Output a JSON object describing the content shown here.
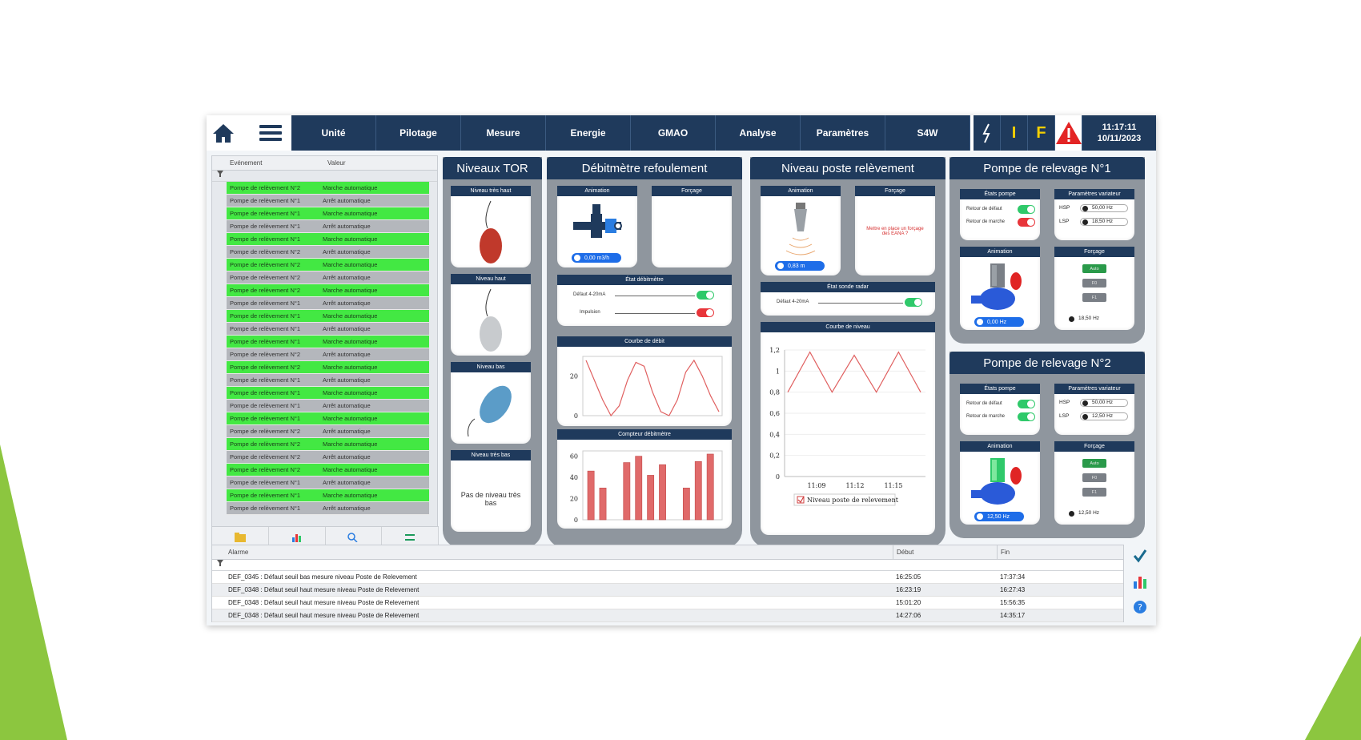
{
  "nav": {
    "tabs": [
      "Unité",
      "Pilotage",
      "Mesure",
      "Energie",
      "GMAO",
      "Analyse",
      "Paramètres",
      "S4W"
    ],
    "indicators": [
      "I",
      "F"
    ],
    "clock_time": "11:17:11",
    "clock_date": "10/11/2023"
  },
  "events": {
    "col_event": "Evénement",
    "col_value": "Valeur",
    "rows": [
      {
        "event": "Pompe de relèvement N°2",
        "value": "Marche automatique",
        "state": "on"
      },
      {
        "event": "Pompe de relèvement N°1",
        "value": "Arrêt automatique",
        "state": "off"
      },
      {
        "event": "Pompe de relèvement N°1",
        "value": "Marche automatique",
        "state": "on"
      },
      {
        "event": "Pompe de relèvement N°1",
        "value": "Arrêt automatique",
        "state": "off"
      },
      {
        "event": "Pompe de relèvement N°1",
        "value": "Marche automatique",
        "state": "on"
      },
      {
        "event": "Pompe de relèvement N°2",
        "value": "Arrêt automatique",
        "state": "off"
      },
      {
        "event": "Pompe de relèvement N°2",
        "value": "Marche automatique",
        "state": "on"
      },
      {
        "event": "Pompe de relèvement N°2",
        "value": "Arrêt automatique",
        "state": "off"
      },
      {
        "event": "Pompe de relèvement N°2",
        "value": "Marche automatique",
        "state": "on"
      },
      {
        "event": "Pompe de relèvement N°1",
        "value": "Arrêt automatique",
        "state": "off"
      },
      {
        "event": "Pompe de relèvement N°1",
        "value": "Marche automatique",
        "state": "on"
      },
      {
        "event": "Pompe de relèvement N°1",
        "value": "Arrêt automatique",
        "state": "off"
      },
      {
        "event": "Pompe de relèvement N°1",
        "value": "Marche automatique",
        "state": "on"
      },
      {
        "event": "Pompe de relèvement N°2",
        "value": "Arrêt automatique",
        "state": "off"
      },
      {
        "event": "Pompe de relèvement N°2",
        "value": "Marche automatique",
        "state": "on"
      },
      {
        "event": "Pompe de relèvement N°1",
        "value": "Arrêt automatique",
        "state": "off"
      },
      {
        "event": "Pompe de relèvement N°1",
        "value": "Marche automatique",
        "state": "on"
      },
      {
        "event": "Pompe de relèvement N°1",
        "value": "Arrêt automatique",
        "state": "off"
      },
      {
        "event": "Pompe de relèvement N°1",
        "value": "Marche automatique",
        "state": "on"
      },
      {
        "event": "Pompe de relèvement N°2",
        "value": "Arrêt automatique",
        "state": "off"
      },
      {
        "event": "Pompe de relèvement N°2",
        "value": "Marche automatique",
        "state": "on"
      },
      {
        "event": "Pompe de relèvement N°2",
        "value": "Arrêt automatique",
        "state": "off"
      },
      {
        "event": "Pompe de relèvement N°2",
        "value": "Marche automatique",
        "state": "on"
      },
      {
        "event": "Pompe de relèvement N°1",
        "value": "Arrêt automatique",
        "state": "off"
      },
      {
        "event": "Pompe de relèvement N°1",
        "value": "Marche automatique",
        "state": "on"
      },
      {
        "event": "Pompe de relèvement N°1",
        "value": "Arrêt automatique",
        "state": "off"
      }
    ]
  },
  "tor": {
    "title": "Niveaux TOR",
    "very_high": "Niveau très haut",
    "high": "Niveau haut",
    "low": "Niveau bas",
    "very_low": "Niveau très bas",
    "very_low_msg": "Pas de niveau très bas"
  },
  "flow": {
    "title": "Débitmètre refoulement",
    "animation": "Animation",
    "forcing": "Forçage",
    "value": "0,00 m3/h",
    "state_title": "État débitmètre",
    "fault": "Défaut 4-20mA",
    "pulse": "Impulsion",
    "curve_title": "Courbe de débit",
    "counter_title": "Compteur débitmètre"
  },
  "level": {
    "title": "Niveau poste relèvement",
    "animation": "Animation",
    "forcing": "Forçage",
    "value": "0,83 m",
    "forcing_msg": "Mettre en place un forçage des EANA ?",
    "radar_title": "État sonde radar",
    "radar_fault": "Défaut 4-20mA",
    "curve_title": "Courbe de niveau",
    "legend": "Niveau poste de relevement"
  },
  "pump1": {
    "title": "Pompe de relevage N°1",
    "states_title": "États pompe",
    "fault_return": "Retour de défaut",
    "run_return": "Retour de marche",
    "drive_title": "Paramètres variateur",
    "hsp_label": "HSP",
    "hsp": "50,00 Hz",
    "lsp_label": "LSP",
    "lsp": "18,50 Hz",
    "animation": "Animation",
    "anim_value": "0,00 Hz",
    "forcing": "Forçage",
    "btn_auto": "Auto",
    "btn_f0": "F0",
    "btn_f1": "F1",
    "forcing_value": "18,50 Hz"
  },
  "pump2": {
    "title": "Pompe de relevage N°2",
    "states_title": "États pompe",
    "fault_return": "Retour de défaut",
    "run_return": "Retour de marche",
    "drive_title": "Paramètres variateur",
    "hsp_label": "HSP",
    "hsp": "50,00 Hz",
    "lsp_label": "LSP",
    "lsp": "12,50 Hz",
    "animation": "Animation",
    "anim_value": "12,50 Hz",
    "forcing": "Forçage",
    "btn_auto": "Auto",
    "btn_f0": "F0",
    "btn_f1": "F1",
    "forcing_value": "12,50 Hz"
  },
  "alarms": {
    "col_alarm": "Alarme",
    "col_start": "Début",
    "col_end": "Fin",
    "rows": [
      {
        "alarm": "DEF_0345 : Défaut seuil bas mesure niveau Poste de Relevement",
        "start": "16:25:05",
        "end": "17:37:34"
      },
      {
        "alarm": "DEF_0348 : Défaut seuil haut mesure niveau Poste de Relevement",
        "start": "16:23:19",
        "end": "16:27:43"
      },
      {
        "alarm": "DEF_0348 : Défaut seuil haut mesure niveau Poste de Relevement",
        "start": "15:01:20",
        "end": "15:56:35"
      },
      {
        "alarm": "DEF_0348 : Défaut seuil haut mesure niveau Poste de Relevement",
        "start": "14:27:06",
        "end": "14:35:17"
      }
    ]
  },
  "chart_data": [
    {
      "type": "line",
      "y_ticks": [
        "20",
        "0"
      ],
      "ylim": [
        0,
        30
      ],
      "values": [
        28,
        18,
        8,
        0,
        5,
        18,
        27,
        25,
        12,
        2,
        0,
        8,
        22,
        28,
        20,
        10,
        2
      ]
    },
    {
      "type": "bar",
      "y_ticks": [
        "60",
        "40",
        "20",
        "0"
      ],
      "ylim": [
        0,
        65
      ],
      "values": [
        46,
        30,
        0,
        54,
        60,
        42,
        52,
        0,
        30,
        55,
        62
      ]
    },
    {
      "type": "line",
      "x_ticks": [
        "11:09",
        "11:12",
        "11:15"
      ],
      "y_ticks": [
        "1,2",
        "1",
        "0,8",
        "0,6",
        "0,4",
        "0,2",
        "0"
      ],
      "ylim": [
        0,
        1.2
      ],
      "series": [
        {
          "name": "Niveau poste de relevement",
          "values": [
            0.8,
            1.18,
            0.8,
            1.15,
            0.8,
            1.18,
            0.8
          ]
        }
      ]
    }
  ]
}
